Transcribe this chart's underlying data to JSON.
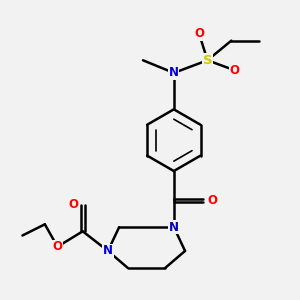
{
  "bg_color": "#f2f2f2",
  "atom_colors": {
    "C": "#000000",
    "N": "#0000cc",
    "O": "#ff0000",
    "S": "#cccc00"
  },
  "bond_color": "#000000",
  "bond_width": 1.8,
  "fig_w": 3.0,
  "fig_h": 3.0,
  "dpi": 100
}
